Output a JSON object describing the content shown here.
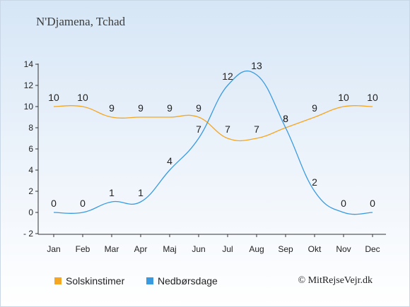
{
  "title": "N'Djamena, Tchad",
  "copyright": "© MitRejseVejr.dk",
  "chart_data": {
    "type": "line",
    "categories": [
      "Jan",
      "Feb",
      "Mar",
      "Apr",
      "Maj",
      "Jun",
      "Jul",
      "Aug",
      "Sep",
      "Okt",
      "Nov",
      "Dec"
    ],
    "series": [
      {
        "name": "Solskinstimer",
        "color": "#f5a623",
        "values": [
          10,
          10,
          9,
          9,
          9,
          9,
          7,
          7,
          8,
          9,
          10,
          10
        ]
      },
      {
        "name": "Nedbørsdage",
        "color": "#3a9ae0",
        "values": [
          0,
          0,
          1,
          1,
          4,
          7,
          12,
          13,
          8,
          2,
          0,
          0
        ]
      }
    ],
    "ylim": [
      -2,
      14
    ],
    "yticks": [
      -2,
      0,
      2,
      4,
      6,
      8,
      10,
      12,
      14
    ],
    "grid": false,
    "legend": "bottom-left"
  }
}
